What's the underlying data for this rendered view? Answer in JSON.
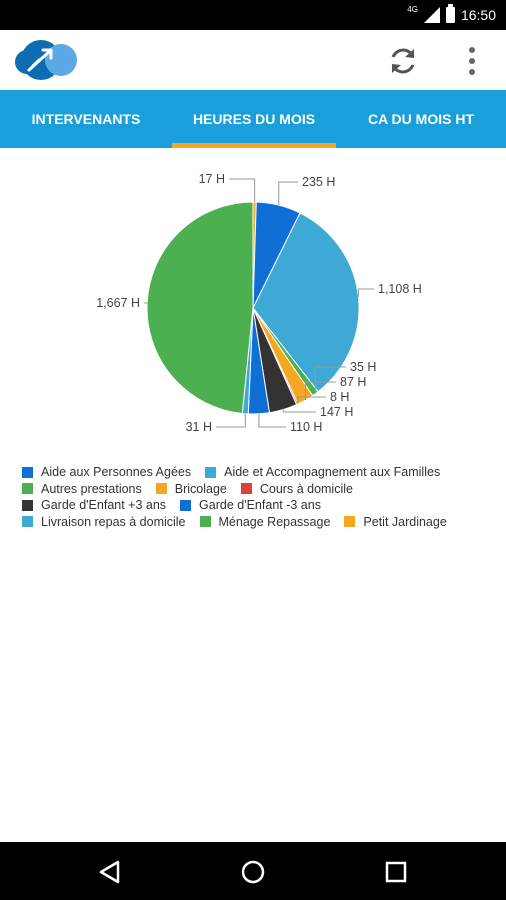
{
  "status": {
    "network": "4G",
    "time": "16:50"
  },
  "appbar": {
    "logo_icon": "logo-icon",
    "refresh_icon": "refresh-icon",
    "overflow_icon": "more-vert-icon"
  },
  "tabs": [
    {
      "label": "INTERVENANTS",
      "active": false
    },
    {
      "label": "HEURES DU MOIS",
      "active": true
    },
    {
      "label": "CA DU MOIS HT",
      "active": false
    }
  ],
  "colors": {
    "tabbar": "#1a9fdc",
    "indicator": "#f5a623"
  },
  "chart_data": {
    "type": "pie",
    "unit": "H",
    "slices": [
      {
        "category": "Bricolage",
        "value": 17,
        "label": "17 H",
        "color": "#f5a623"
      },
      {
        "category": "Aide aux Personnes Agées",
        "value": 235,
        "label": "235 H",
        "color": "#0f6fd6"
      },
      {
        "category": "Aide et Accompagnement aux Familles",
        "value": 1108,
        "label": "1,108 H",
        "color": "#3fa9d6"
      },
      {
        "category": "Autres prestations",
        "value": 35,
        "label": "35 H",
        "color": "#4caf50"
      },
      {
        "category": "Petit Jardinage",
        "value": 87,
        "label": "87 H",
        "color": "#f5a623"
      },
      {
        "category": "Cours à domicile",
        "value": 8,
        "label": "8 H",
        "color": "#d9433a"
      },
      {
        "category": "Garde d'Enfant +3 ans",
        "value": 147,
        "label": "147 H",
        "color": "#333333"
      },
      {
        "category": "Garde d'Enfant -3 ans",
        "value": 110,
        "label": "110 H",
        "color": "#0f6fd6"
      },
      {
        "category": "Livraison repas à domicile",
        "value": 31,
        "label": "31 H",
        "color": "#3fa9d6"
      },
      {
        "category": "Ménage Repassage",
        "value": 1667,
        "label": "1,667 H",
        "color": "#4caf50"
      }
    ],
    "legend": [
      [
        {
          "label": "Aide aux Personnes Agées",
          "color": "#0f6fd6"
        },
        {
          "label": "Aide et Accompagnement aux Familles",
          "color": "#3fa9d6"
        }
      ],
      [
        {
          "label": "Autres prestations",
          "color": "#4caf50"
        },
        {
          "label": "Bricolage",
          "color": "#f5a623"
        },
        {
          "label": "Cours à domicile",
          "color": "#d9433a"
        }
      ],
      [
        {
          "label": "Garde d'Enfant +3 ans",
          "color": "#333333"
        },
        {
          "label": "Garde d'Enfant -3 ans",
          "color": "#0f6fd6"
        }
      ],
      [
        {
          "label": "Livraison repas à domicile",
          "color": "#3fa9d6"
        },
        {
          "label": "Ménage Repassage",
          "color": "#4caf50"
        },
        {
          "label": "Petit Jardinage",
          "color": "#f5a623"
        }
      ]
    ],
    "legend_position": "bottom-left"
  },
  "navbar": {
    "back_icon": "back-icon",
    "home_icon": "home-icon",
    "recents_icon": "recents-icon"
  }
}
